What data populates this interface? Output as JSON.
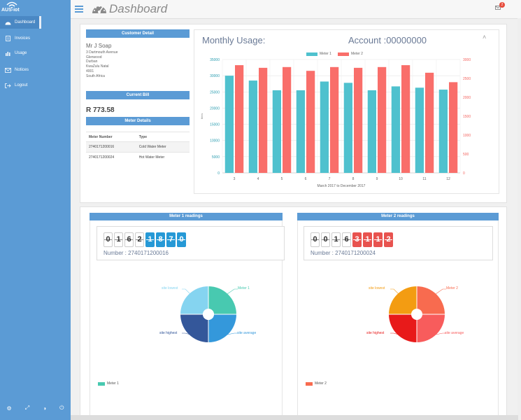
{
  "app": {
    "logo_text": "AUS-iot",
    "page_title": "Dashboard",
    "notification_count": "2"
  },
  "sidebar": {
    "items": [
      {
        "label": "Dashboard",
        "icon": "dashboard-icon"
      },
      {
        "label": "Invoices",
        "icon": "document-icon"
      },
      {
        "label": "Usage",
        "icon": "bar-chart-icon"
      },
      {
        "label": "Notices",
        "icon": "envelope-icon"
      },
      {
        "label": "Logout",
        "icon": "logout-icon"
      }
    ]
  },
  "customer": {
    "header": "Customer Detail",
    "name": "Mr J Soap",
    "address": [
      "3 Dartmouth Avenue",
      "Glenwood",
      "Durban",
      "KwaZulu Natal",
      "4001",
      "South Africa"
    ]
  },
  "bill": {
    "header": "Current Bill",
    "amount": "R 773.58"
  },
  "meters": {
    "header": "Meter Details",
    "columns": [
      "Meter Number",
      "Type"
    ],
    "rows": [
      [
        "2740171200016",
        "Cold Water Meter"
      ],
      [
        "2740171200024",
        "Hot Water Meter"
      ]
    ]
  },
  "usage": {
    "title": "Monthly Usage:",
    "account": "Account :00000000",
    "collapse_icon": "chevron-up-icon"
  },
  "chart_data": {
    "type": "bar",
    "categories": [
      "3",
      "4",
      "5",
      "6",
      "7",
      "8",
      "9",
      "10",
      "11",
      "12"
    ],
    "series": [
      {
        "name": "Meter 1",
        "axis": "left",
        "color": "#4fc1ce",
        "values": [
          30000,
          28500,
          25500,
          25500,
          28200,
          27800,
          25500,
          26700,
          26300,
          25700
        ]
      },
      {
        "name": "Meter 2",
        "axis": "right",
        "color": "#f96e6a",
        "values": [
          2850,
          2780,
          2800,
          2700,
          2800,
          2780,
          2800,
          2850,
          2650,
          2400
        ]
      }
    ],
    "yticks_left": [
      "0",
      "5000",
      "10000",
      "15000",
      "20000",
      "25000",
      "30000",
      "35000"
    ],
    "yticks_right": [
      "0",
      "500",
      "1000",
      "1500",
      "2000",
      "2500",
      "3000"
    ],
    "ylim_left": [
      0,
      35000
    ],
    "ylim_right": [
      0,
      3000
    ],
    "ylabel": "liters",
    "xlabel": "March 2017  to  December 2017",
    "legend": "top",
    "grid": true
  },
  "meter1": {
    "header": "Meter 1 readings",
    "digits_black": [
      "0",
      "1",
      "6",
      "2"
    ],
    "digits_colored": [
      "1",
      "8",
      "7",
      "0"
    ],
    "number": "Number : 2740171200016",
    "legend": "Meter 1",
    "colors": {
      "top_right": "#48c9b0",
      "bottom_right": "#3498db",
      "bottom_left": "#34579a",
      "top_left": "#85d4f0",
      "legend": "#48c9b0"
    },
    "labels": {
      "top_left": "site lowest",
      "top_right": "Meter 1",
      "bottom_left": "site highest",
      "bottom_right": "site average"
    }
  },
  "meter2": {
    "header": "Meter 2 readings",
    "digits_black": [
      "0",
      "0",
      "1",
      "6"
    ],
    "digits_colored": [
      "3",
      "1",
      "1",
      "2"
    ],
    "number": "Number : 2740171200024",
    "legend": "Meter 2",
    "colors": {
      "top_right": "#f86b4f",
      "bottom_right": "#f85c5c",
      "bottom_left": "#e81a1a",
      "top_left": "#f39c12",
      "legend": "#f86b4f"
    },
    "labels": {
      "top_left": "site lowest",
      "top_right": "Meter 2",
      "bottom_left": "site highest",
      "bottom_right": "site average"
    }
  }
}
